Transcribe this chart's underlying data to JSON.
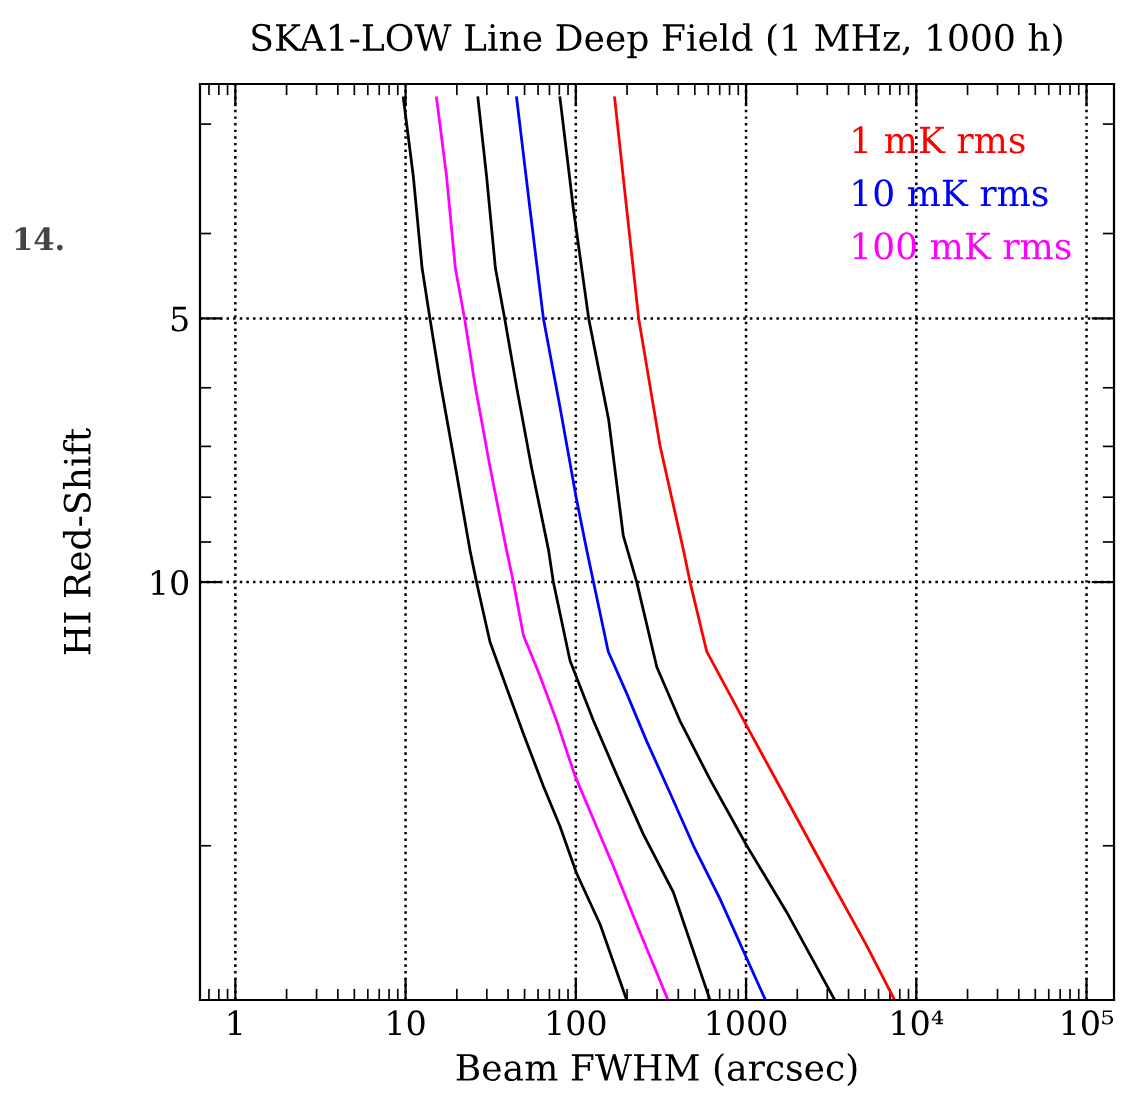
{
  "chart_data": {
    "type": "line",
    "title": "SKA1-LOW Line Deep Field (1 MHz, 1000 h)",
    "xlabel": "Beam FWHM (arcsec)",
    "ylabel": "HI Red-Shift",
    "log": "xy",
    "xlim": [
      0.62,
      145000
    ],
    "ylim": [
      30,
      2.7
    ],
    "xticks": [
      1,
      10,
      100,
      1000,
      {
        "value": 10000,
        "label": "10⁴"
      },
      {
        "value": 100000,
        "label": "10⁵"
      }
    ],
    "yticks": [
      5,
      10
    ],
    "grid": true,
    "line_style": "solid",
    "marker": "none",
    "legend": "top right",
    "annotations": [
      "14."
    ],
    "series": [
      {
        "color": "#000000",
        "x": [
          9.7,
          11.1,
          12.5,
          13.9,
          15.9,
          19.6,
          23.9,
          26.1,
          31.3,
          39.2,
          49.2,
          64.5,
          80.7,
          101,
          139,
          199
        ],
        "values": [
          2.8,
          3.44,
          4.38,
          5.0,
          5.88,
          7.38,
          9.2,
          10,
          11.7,
          13.2,
          14.9,
          17.1,
          19,
          21.5,
          24.6,
          30
        ]
      },
      {
        "name": "100 mK rms",
        "color": "#ff00ff",
        "x": [
          15.2,
          17.4,
          19.6,
          22.2,
          25.7,
          31.3,
          39.2,
          43,
          49.2,
          61.6,
          77.1,
          98.4,
          132,
          166,
          228,
          348
        ],
        "values": [
          2.8,
          3.44,
          4.38,
          5.0,
          5.99,
          7.38,
          9.2,
          10,
          11.5,
          12.8,
          14.4,
          16.6,
          19,
          21.1,
          24.6,
          30
        ]
      },
      {
        "color": "#000000",
        "x": [
          26.6,
          29.9,
          33.7,
          38.2,
          44.9,
          54.8,
          69.2,
          73.8,
          92.5,
          127,
          174,
          249,
          374,
          614
        ],
        "values": [
          2.8,
          3.44,
          4.38,
          5.0,
          5.99,
          7.38,
          9.2,
          10,
          12.3,
          14.4,
          16.6,
          19.4,
          22.6,
          30
        ]
      },
      {
        "name": "10 mK rms",
        "color": "#0000ff",
        "x": [
          44.9,
          53.8,
          64.5,
          80.7,
          101,
          116,
          127,
          155,
          199,
          261,
          357,
          491,
          703,
          1300
        ],
        "values": [
          2.8,
          3.75,
          5.0,
          6.31,
          8.05,
          9.2,
          10,
          12,
          13.4,
          15.2,
          17.4,
          20,
          23,
          30
        ]
      },
      {
        "color": "#000000",
        "x": [
          80.7,
          96.8,
          119,
          156,
          190,
          228,
          299,
          409,
          614,
          1010,
          1730,
          3320
        ],
        "values": [
          2.8,
          3.75,
          5.0,
          6.53,
          8.85,
          10,
          12.5,
          14.4,
          16.8,
          20,
          23.8,
          30
        ]
      },
      {
        "name": "1 mK rms",
        "color": "#ff0000",
        "x": [
          169,
          199,
          234,
          313,
          429,
          469,
          587,
          1010,
          1730,
          2980,
          5110,
          7460
        ],
        "values": [
          2.8,
          3.75,
          5.0,
          7.0,
          9.2,
          10,
          12,
          14.6,
          17.7,
          21.5,
          26,
          30
        ]
      }
    ]
  }
}
